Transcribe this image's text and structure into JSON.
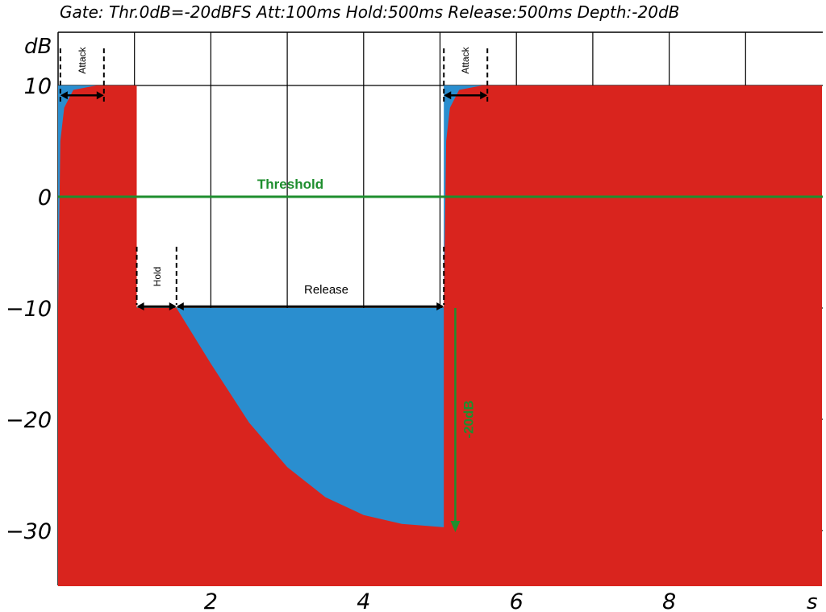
{
  "chart_data": {
    "type": "area",
    "title": "Gate: Thr.0dB=-20dBFS   Att:100ms Hold:500ms Release:500ms Depth:-20dB",
    "xlabel": "s",
    "ylabel": "dB",
    "xlim": [
      0,
      10
    ],
    "ylim": [
      -35,
      15
    ],
    "x_ticks": [
      {
        "value": 2,
        "label": "2"
      },
      {
        "value": 4,
        "label": "4"
      },
      {
        "value": 6,
        "label": "6"
      },
      {
        "value": 8,
        "label": "8"
      }
    ],
    "y_ticks": [
      {
        "value": 10,
        "label": "10"
      },
      {
        "value": 0,
        "label": "0"
      },
      {
        "value": -10,
        "label": "−10"
      },
      {
        "value": -20,
        "label": "−20"
      },
      {
        "value": -30,
        "label": "−30"
      }
    ],
    "grid": true,
    "colors": {
      "signal": "#d9241e",
      "gate_gain": "#2a8ecf",
      "threshold": "#1e8e2e"
    },
    "series": [
      {
        "role": "input signal level",
        "points": [
          [
            0,
            10
          ],
          [
            1.03,
            10
          ],
          [
            1.03,
            -10
          ],
          [
            5.05,
            -10
          ],
          [
            5.05,
            10
          ],
          [
            10,
            10
          ]
        ]
      },
      {
        "role": "gated output level",
        "points": [
          [
            0,
            -10
          ],
          [
            0.03,
            5
          ],
          [
            0.08,
            8
          ],
          [
            0.2,
            9.6
          ],
          [
            0.5,
            10
          ],
          [
            1.03,
            10
          ],
          [
            1.03,
            -10
          ],
          [
            1.55,
            -10
          ],
          [
            2.0,
            -15
          ],
          [
            2.5,
            -20.3
          ],
          [
            3.0,
            -24.3
          ],
          [
            3.5,
            -27
          ],
          [
            4.0,
            -28.6
          ],
          [
            4.5,
            -29.4
          ],
          [
            5.05,
            -29.7
          ],
          [
            5.05,
            -10
          ],
          [
            5.08,
            5
          ],
          [
            5.13,
            8
          ],
          [
            5.25,
            9.6
          ],
          [
            5.55,
            10
          ],
          [
            10,
            10
          ]
        ]
      }
    ],
    "threshold": {
      "y": 0,
      "label": "Threshold"
    },
    "annotations": [
      {
        "label": "Attack",
        "x_start": 0.03,
        "x_end": 0.6,
        "y": 9.4
      },
      {
        "label": "Hold",
        "x_start": 1.03,
        "x_end": 1.55,
        "y": -10
      },
      {
        "label": "Release",
        "x_start": 1.55,
        "x_end": 5.05,
        "y": -10
      },
      {
        "label": "Attack",
        "x_start": 5.05,
        "x_end": 5.62,
        "y": 9.4
      },
      {
        "label": "-20dB",
        "x": 5.2,
        "y_start": -10,
        "y_end": -30
      }
    ]
  }
}
